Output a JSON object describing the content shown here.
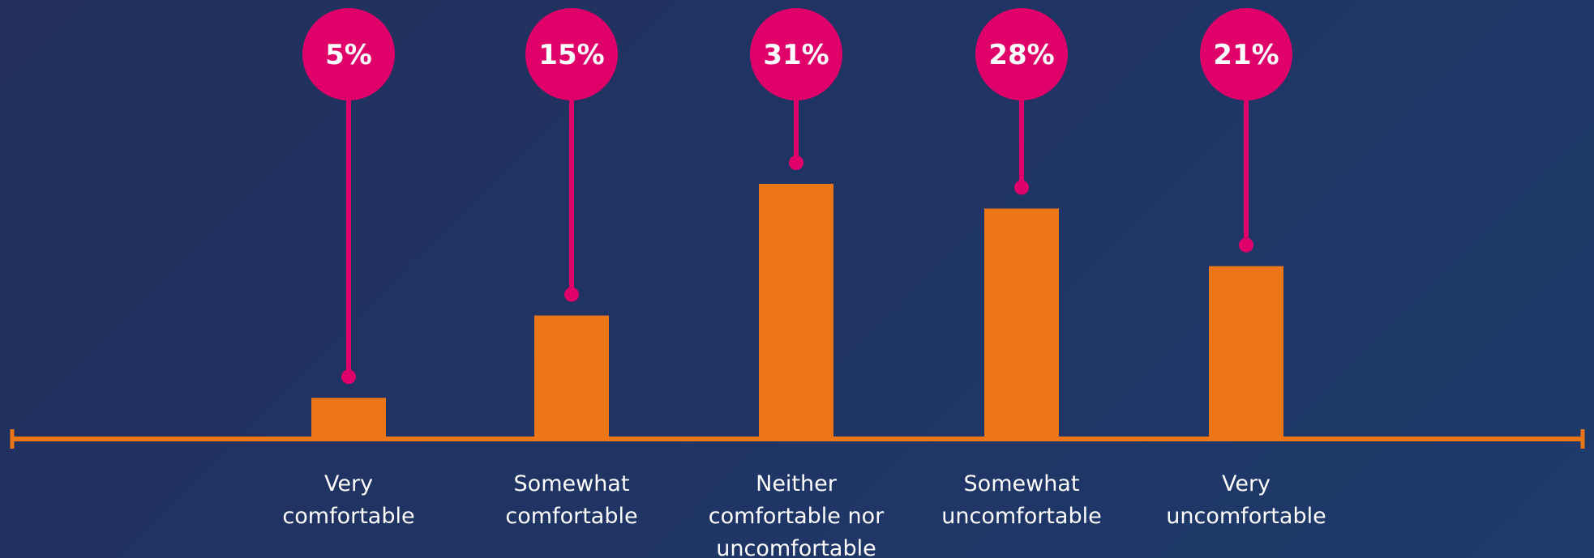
{
  "colors": {
    "bar": "#ec7615",
    "bubble": "#e0006a",
    "text": "#ffffff"
  },
  "chart_data": {
    "type": "bar",
    "categories": [
      [
        "Very",
        "comfortable"
      ],
      [
        "Somewhat",
        "comfortable"
      ],
      [
        "Neither",
        "comfortable nor",
        "uncomfortable"
      ],
      [
        "Somewhat",
        "uncomfortable"
      ],
      [
        "Very",
        "uncomfortable"
      ]
    ],
    "values": [
      5,
      15,
      31,
      28,
      21
    ],
    "data_labels": [
      "5%",
      "15%",
      "31%",
      "28%",
      "21%"
    ],
    "ylim": [
      0,
      35
    ],
    "grid": false,
    "legend": "none"
  }
}
